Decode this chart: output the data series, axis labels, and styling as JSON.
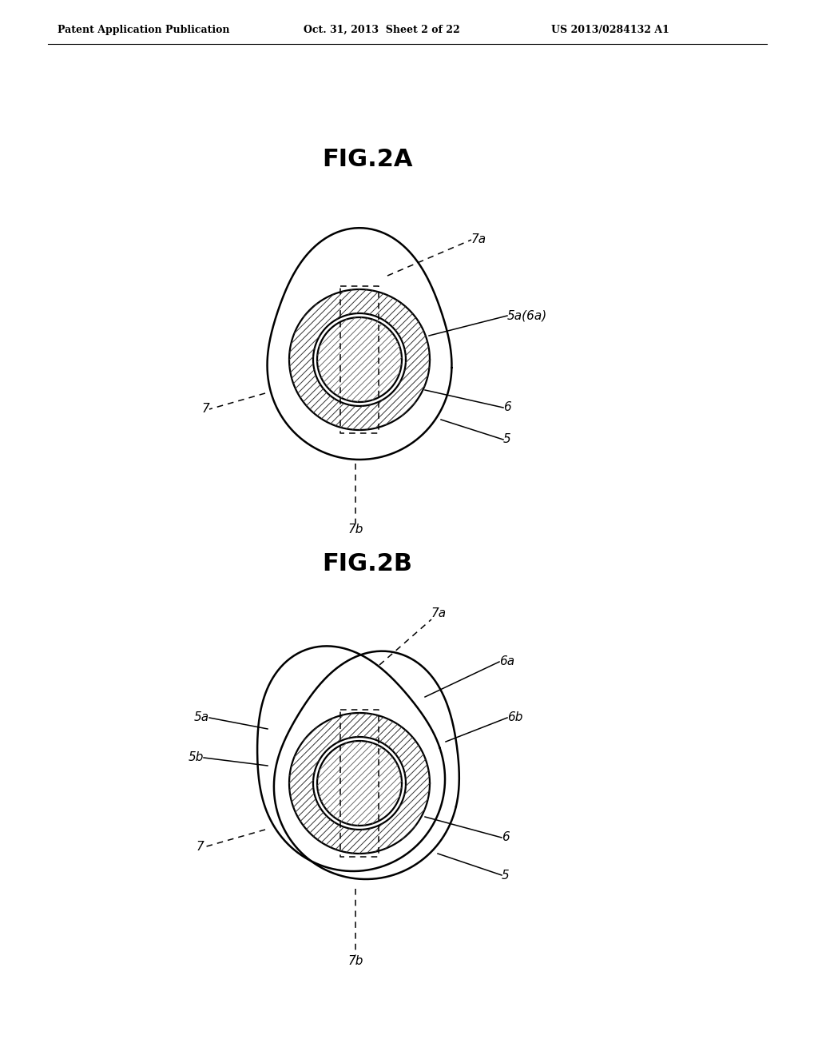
{
  "bg_color": "#ffffff",
  "header_text": "Patent Application Publication",
  "header_date": "Oct. 31, 2013  Sheet 2 of 22",
  "header_patent": "US 2013/0284132 A1",
  "fig2a_title": "FIG.2A",
  "fig2b_title": "FIG.2B",
  "line_color": "#000000",
  "lw_outer": 1.8,
  "lw_ring": 1.6,
  "lw_hatch": 0.7,
  "label_fontsize": 11,
  "title_fontsize": 22,
  "header_fontsize": 9
}
